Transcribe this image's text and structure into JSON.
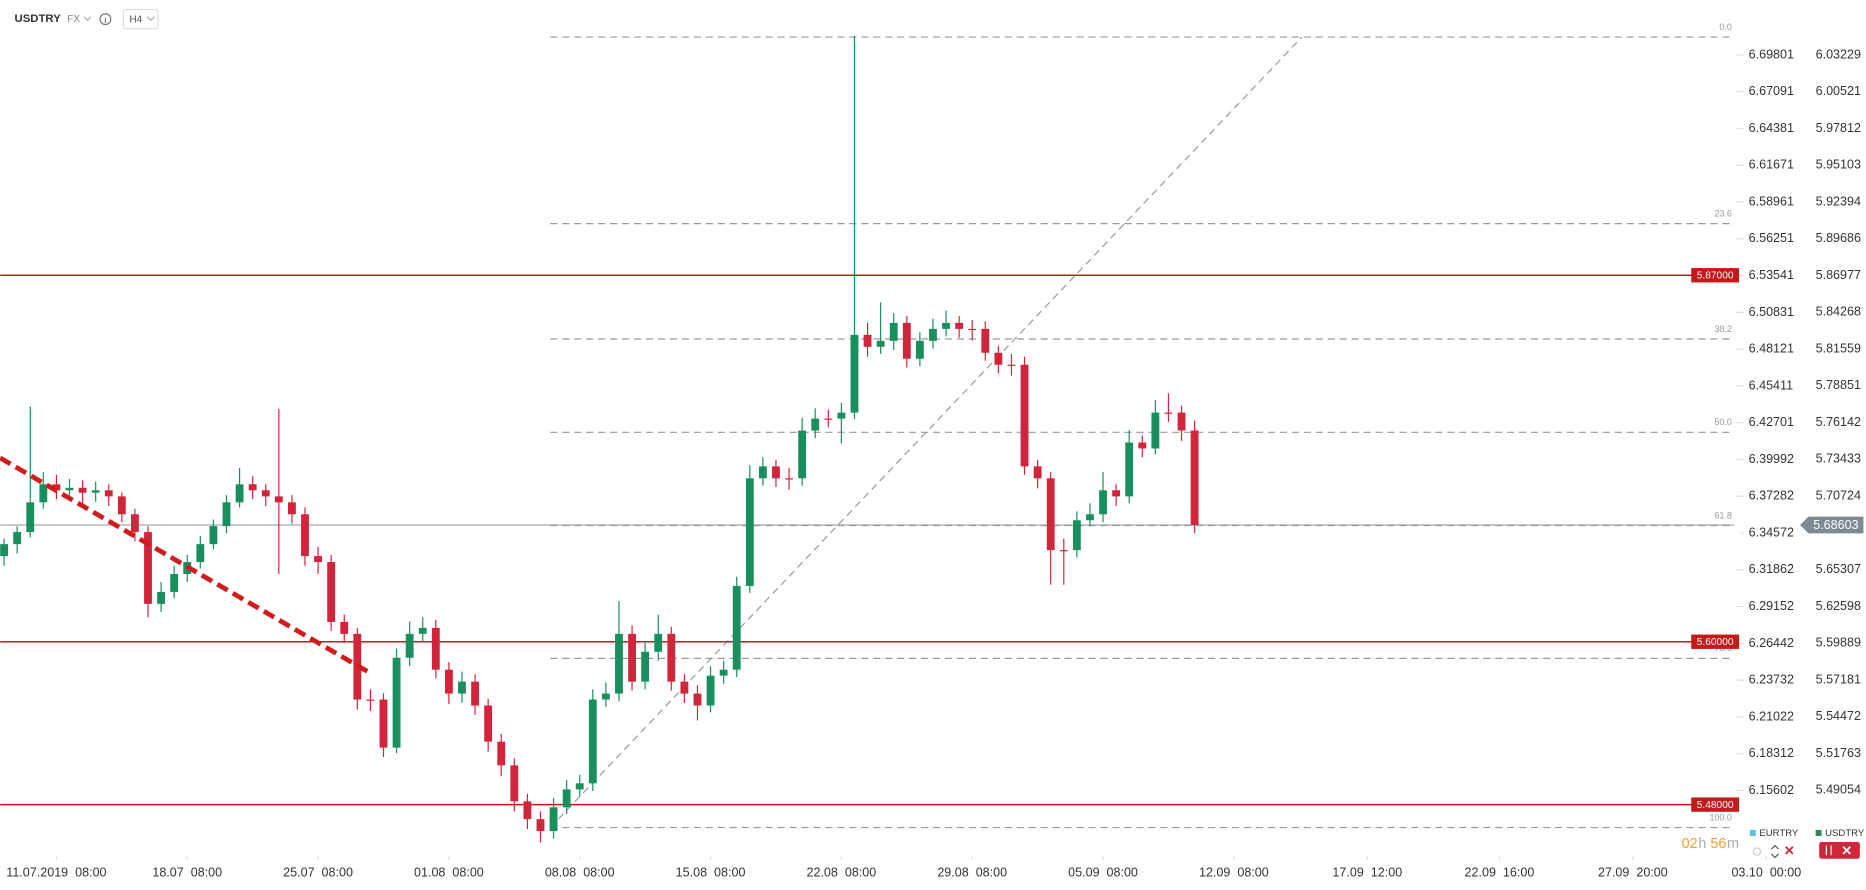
{
  "chart_data": {
    "type": "candlestick",
    "symbol": "USDTRY",
    "market": "FX",
    "interval": "H4",
    "up_color": "#1a8f5e",
    "down_color": "#d0253b",
    "x": [
      -4,
      -3,
      -2,
      -1,
      0,
      1,
      2,
      3,
      4,
      5,
      6,
      7,
      8,
      9,
      10,
      11,
      12,
      13,
      14,
      15,
      16,
      17,
      18,
      19,
      20,
      21,
      22,
      23,
      24,
      25,
      26,
      27,
      28,
      29,
      30,
      31,
      32,
      33,
      34,
      35,
      36,
      37,
      38,
      39,
      40,
      41,
      42,
      43,
      44,
      45,
      46,
      47,
      48,
      49,
      50,
      51,
      52,
      53,
      54,
      55,
      56,
      57,
      58,
      59,
      60,
      61,
      62,
      63,
      64,
      65,
      66,
      67,
      68,
      69,
      70,
      71,
      72,
      73,
      74,
      75,
      76,
      77,
      78,
      79,
      80,
      81,
      82,
      83,
      84,
      85,
      86,
      87
    ],
    "open": [
      5.6631,
      5.6719,
      5.6808,
      5.7027,
      5.716,
      5.7116,
      5.7134,
      5.7098,
      5.7116,
      5.7071,
      5.6939,
      5.6808,
      5.6279,
      5.6367,
      5.6499,
      5.6587,
      5.6719,
      5.6852,
      5.7027,
      5.716,
      5.7116,
      5.7071,
      5.7027,
      5.6939,
      5.6631,
      5.6587,
      5.6146,
      5.6058,
      5.5574,
      5.5574,
      5.522,
      5.5882,
      5.6058,
      5.6102,
      5.5794,
      5.5618,
      5.5706,
      5.553,
      5.5264,
      5.5089,
      5.4824,
      5.4693,
      5.4605,
      5.478,
      5.4912,
      5.4957,
      5.5574,
      5.5618,
      5.6058,
      5.5706,
      5.5926,
      5.6058,
      5.5706,
      5.5618,
      5.553,
      5.575,
      5.5794,
      5.6411,
      5.7204,
      5.7292,
      5.7204,
      5.7204,
      5.7556,
      5.7644,
      5.7644,
      5.7688,
      5.8261,
      5.8173,
      5.8217,
      5.8349,
      5.8085,
      5.8217,
      5.8305,
      5.8349,
      5.8305,
      5.8305,
      5.8129,
      5.8041,
      5.8041,
      5.7292,
      5.7204,
      5.6675,
      5.6675,
      5.6895,
      5.6939,
      5.7116,
      5.7071,
      5.7468,
      5.7424,
      5.7688,
      5.7688,
      5.7556
    ],
    "high": [
      5.676,
      5.685,
      5.7733,
      5.725,
      5.723,
      5.72,
      5.719,
      5.718,
      5.716,
      5.71,
      5.698,
      5.685,
      5.644,
      5.656,
      5.664,
      5.678,
      5.69,
      5.708,
      5.728,
      5.722,
      5.716,
      5.7715,
      5.708,
      5.699,
      5.67,
      5.664,
      5.62,
      5.61,
      5.565,
      5.562,
      5.595,
      5.615,
      5.618,
      5.616,
      5.585,
      5.578,
      5.576,
      5.558,
      5.532,
      5.514,
      5.488,
      5.475,
      5.485,
      5.498,
      5.502,
      5.565,
      5.57,
      5.63,
      5.612,
      5.6,
      5.62,
      5.611,
      5.576,
      5.568,
      5.582,
      5.586,
      5.648,
      5.73,
      5.736,
      5.734,
      5.728,
      5.765,
      5.772,
      5.771,
      5.776,
      6.0464,
      5.835,
      5.85,
      5.842,
      5.84,
      5.828,
      5.838,
      5.844,
      5.84,
      5.837,
      5.836,
      5.818,
      5.812,
      5.81,
      5.734,
      5.725,
      5.676,
      5.696,
      5.702,
      5.725,
      5.716,
      5.756,
      5.752,
      5.778,
      5.783,
      5.774,
      5.763
    ],
    "low": [
      5.656,
      5.665,
      5.677,
      5.698,
      5.705,
      5.704,
      5.702,
      5.703,
      5.7,
      5.688,
      5.674,
      5.618,
      5.622,
      5.632,
      5.644,
      5.654,
      5.668,
      5.68,
      5.699,
      5.705,
      5.7,
      5.6499,
      5.687,
      5.656,
      5.65,
      5.608,
      5.599,
      5.55,
      5.549,
      5.515,
      5.518,
      5.582,
      5.6,
      5.573,
      5.554,
      5.555,
      5.546,
      5.519,
      5.501,
      5.475,
      5.462,
      5.452,
      5.455,
      5.473,
      5.486,
      5.49,
      5.552,
      5.556,
      5.564,
      5.565,
      5.586,
      5.564,
      5.555,
      5.542,
      5.548,
      5.569,
      5.574,
      5.636,
      5.715,
      5.714,
      5.712,
      5.715,
      5.75,
      5.758,
      5.746,
      5.764,
      5.81,
      5.812,
      5.815,
      5.802,
      5.803,
      5.816,
      5.825,
      5.824,
      5.822,
      5.807,
      5.798,
      5.796,
      5.723,
      5.713,
      5.642,
      5.642,
      5.662,
      5.685,
      5.688,
      5.7,
      5.702,
      5.736,
      5.738,
      5.762,
      5.748,
      5.68
    ],
    "close": [
      5.6719,
      5.6808,
      5.7027,
      5.716,
      5.7116,
      5.7134,
      5.7098,
      5.7116,
      5.7071,
      5.6939,
      5.6808,
      5.6279,
      5.6367,
      5.6499,
      5.6587,
      5.6719,
      5.6852,
      5.7027,
      5.716,
      5.7116,
      5.7071,
      5.7027,
      5.6939,
      5.6631,
      5.6587,
      5.6146,
      5.6058,
      5.5574,
      5.5574,
      5.522,
      5.5882,
      5.6058,
      5.6102,
      5.5794,
      5.5618,
      5.5706,
      5.553,
      5.5264,
      5.5089,
      5.4824,
      5.4693,
      5.4605,
      5.478,
      5.4912,
      5.4957,
      5.5574,
      5.5618,
      5.6058,
      5.5706,
      5.5926,
      5.6058,
      5.5706,
      5.5618,
      5.553,
      5.575,
      5.5794,
      5.6411,
      5.7204,
      5.7292,
      5.7204,
      5.7204,
      5.7556,
      5.7644,
      5.7644,
      5.7688,
      5.8261,
      5.8173,
      5.8217,
      5.8349,
      5.8085,
      5.8217,
      5.8305,
      5.8349,
      5.8305,
      5.8305,
      5.8129,
      5.8041,
      5.8041,
      5.7292,
      5.7204,
      5.6675,
      5.6675,
      5.6895,
      5.6939,
      5.7116,
      5.7071,
      5.7468,
      5.7424,
      5.7688,
      5.7688,
      5.7556,
      5.68603
    ],
    "xlim": [
      -4.3,
      128.25
    ],
    "xticks": [
      {
        "value": 0,
        "label": "11.07.2019  08:00"
      },
      {
        "value": 10,
        "label": "18.07  08:00"
      },
      {
        "value": 20,
        "label": "25.07  08:00"
      },
      {
        "value": 30,
        "label": "01.08  08:00"
      },
      {
        "value": 40,
        "label": "08.08  08:00"
      },
      {
        "value": 50,
        "label": "15.08  08:00"
      },
      {
        "value": 60,
        "label": "22.08  08:00"
      },
      {
        "value": 70,
        "label": "29.08  08:00"
      },
      {
        "value": 80,
        "label": "05.09  08:00"
      },
      {
        "value": 90,
        "label": "12.09  08:00"
      },
      {
        "value": 100.2,
        "label": "17.09  12:00"
      },
      {
        "value": 110.3,
        "label": "22.09  16:00"
      },
      {
        "value": 120.5,
        "label": "27.09  20:00"
      },
      {
        "value": 130.7,
        "label": "03.10  00:00"
      }
    ],
    "ylim": [
      5.4428,
      6.0728
    ],
    "yticks": [
      6.03229,
      6.00521,
      5.97812,
      5.95103,
      5.92394,
      5.89686,
      5.86977,
      5.84268,
      5.81559,
      5.78851,
      5.76142,
      5.73433,
      5.70724,
      5.65307,
      5.62598,
      5.59889,
      5.57181,
      5.54472,
      5.51763,
      5.49054
    ],
    "y2lim": [
      6.1085,
      6.7385
    ],
    "y2ticks": [
      6.69801,
      6.67091,
      6.64381,
      6.61671,
      6.58961,
      6.56251,
      6.53541,
      6.50831,
      6.48121,
      6.45411,
      6.42701,
      6.39992,
      6.37282,
      6.34572,
      6.31862,
      6.29152,
      6.26442,
      6.23732,
      6.21022,
      6.18312,
      6.15602
    ],
    "levels": [
      {
        "value": 5.87,
        "label": "5.87000"
      },
      {
        "value": 5.6,
        "label": "5.60000"
      },
      {
        "value": 5.48,
        "label": "5.48000"
      }
    ],
    "level_color": "#c41a1a",
    "current_price": 5.68603,
    "fib": {
      "from": {
        "x": 37.75,
        "price": 5.4631
      },
      "to": {
        "x": 95.2,
        "price": 6.0455
      },
      "levels": [
        {
          "value": 0,
          "label": "0.0"
        },
        23.6,
        38.2,
        {
          "value": 50,
          "label": "50.0"
        },
        61.8,
        78.6,
        {
          "value": 100,
          "label": "100.0"
        }
      ]
    },
    "trendline": {
      "x": [
        -4.3,
        23.86
      ],
      "price": [
        5.7354,
        5.5776
      ],
      "color": "#d01c1c"
    },
    "legend": [
      {
        "name": "EURTRY",
        "color": "#5bc0de"
      },
      {
        "name": "USDTRY",
        "color": "#2e8b57"
      }
    ],
    "countdown": {
      "hours": "02",
      "h": "h",
      "minutes": "56",
      "m": "m"
    }
  }
}
